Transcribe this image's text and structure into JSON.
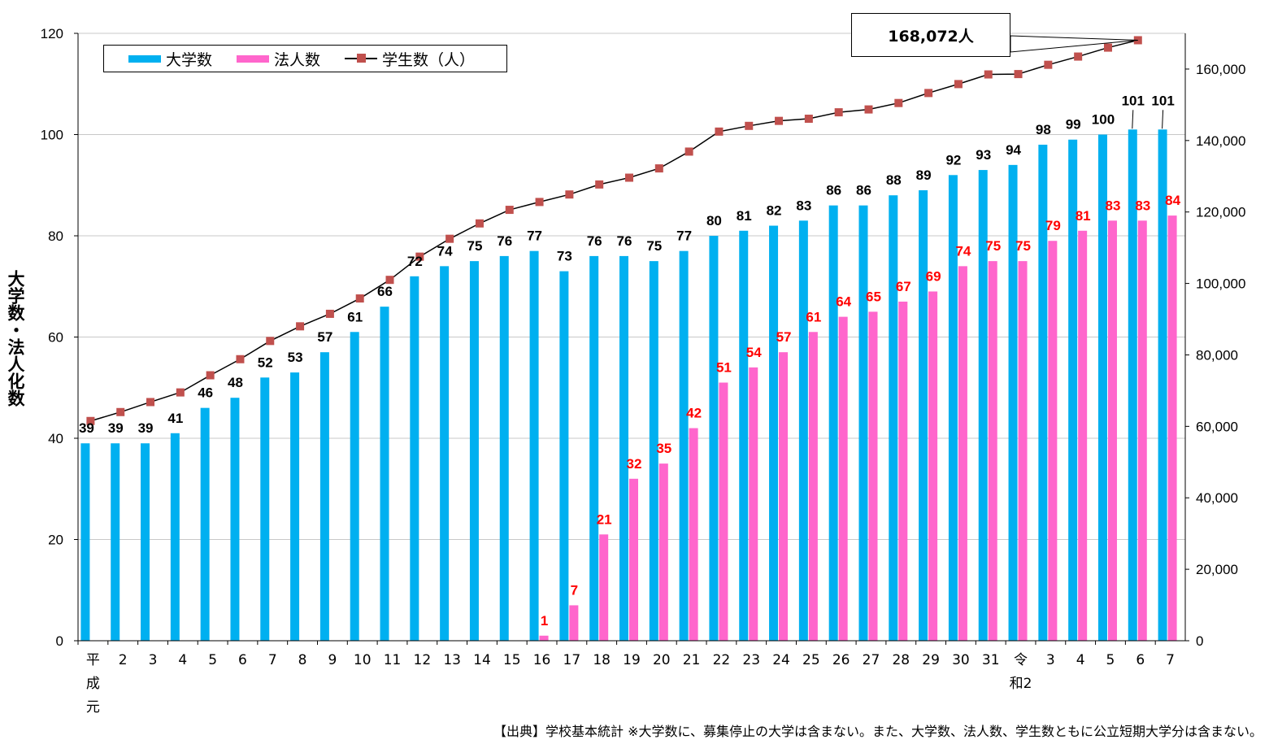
{
  "chart_data": {
    "type": "bar",
    "title": "",
    "ylabel": "大学数・法人化数",
    "ylabel2": "",
    "ylim": [
      0,
      120
    ],
    "yticks": [
      0,
      20,
      40,
      60,
      80,
      100,
      120
    ],
    "ylim2": [
      0,
      170000
    ],
    "yticks2": [
      "0",
      "20,000",
      "40,000",
      "60,000",
      "80,000",
      "100,000",
      "120,000",
      "140,000",
      "160,000"
    ],
    "yticks2_values": [
      0,
      20000,
      40000,
      60000,
      80000,
      100000,
      120000,
      140000,
      160000
    ],
    "categories": [
      "平成元",
      "2",
      "3",
      "4",
      "5",
      "6",
      "7",
      "8",
      "9",
      "10",
      "11",
      "12",
      "13",
      "14",
      "15",
      "16",
      "17",
      "18",
      "19",
      "20",
      "21",
      "22",
      "23",
      "24",
      "25",
      "26",
      "27",
      "28",
      "29",
      "30",
      "31",
      "令和2",
      "3",
      "4",
      "5",
      "6",
      "7"
    ],
    "series": [
      {
        "name": "大学数",
        "type": "bar",
        "color": "#00b0f0",
        "values": [
          39,
          39,
          39,
          41,
          46,
          48,
          52,
          53,
          57,
          61,
          66,
          72,
          74,
          75,
          76,
          77,
          73,
          76,
          76,
          75,
          77,
          80,
          81,
          82,
          83,
          86,
          86,
          88,
          89,
          92,
          93,
          94,
          98,
          99,
          100,
          101,
          101
        ]
      },
      {
        "name": "法人数",
        "type": "bar",
        "color": "#ff66cc",
        "values": [
          null,
          null,
          null,
          null,
          null,
          null,
          null,
          null,
          null,
          null,
          null,
          null,
          null,
          null,
          null,
          1,
          7,
          21,
          32,
          35,
          42,
          51,
          54,
          57,
          61,
          64,
          65,
          67,
          69,
          74,
          75,
          75,
          79,
          81,
          83,
          83,
          84
        ]
      },
      {
        "name": "学生数（人）",
        "type": "line",
        "axis": "secondary",
        "color": "#c0504d",
        "values": [
          61500,
          64000,
          66800,
          69500,
          74300,
          78800,
          83900,
          88000,
          91500,
          95800,
          101000,
          107500,
          112500,
          116800,
          120600,
          122800,
          124900,
          127700,
          129600,
          132200,
          136900,
          142500,
          144100,
          145500,
          146100,
          147900,
          148700,
          150500,
          153300,
          155800,
          158500,
          158600,
          161200,
          163500,
          166000,
          168072,
          null
        ]
      }
    ],
    "legend": [
      "大学数",
      "法人数",
      "学生数（人）"
    ],
    "legend_position": "top-left",
    "callout": "168,072人",
    "source": "【出典】学校基本統計 ※大学数に、募集停止の大学は含まない。また、大学数、法人数、学生数ともに公立短期大学分は含まない。"
  }
}
